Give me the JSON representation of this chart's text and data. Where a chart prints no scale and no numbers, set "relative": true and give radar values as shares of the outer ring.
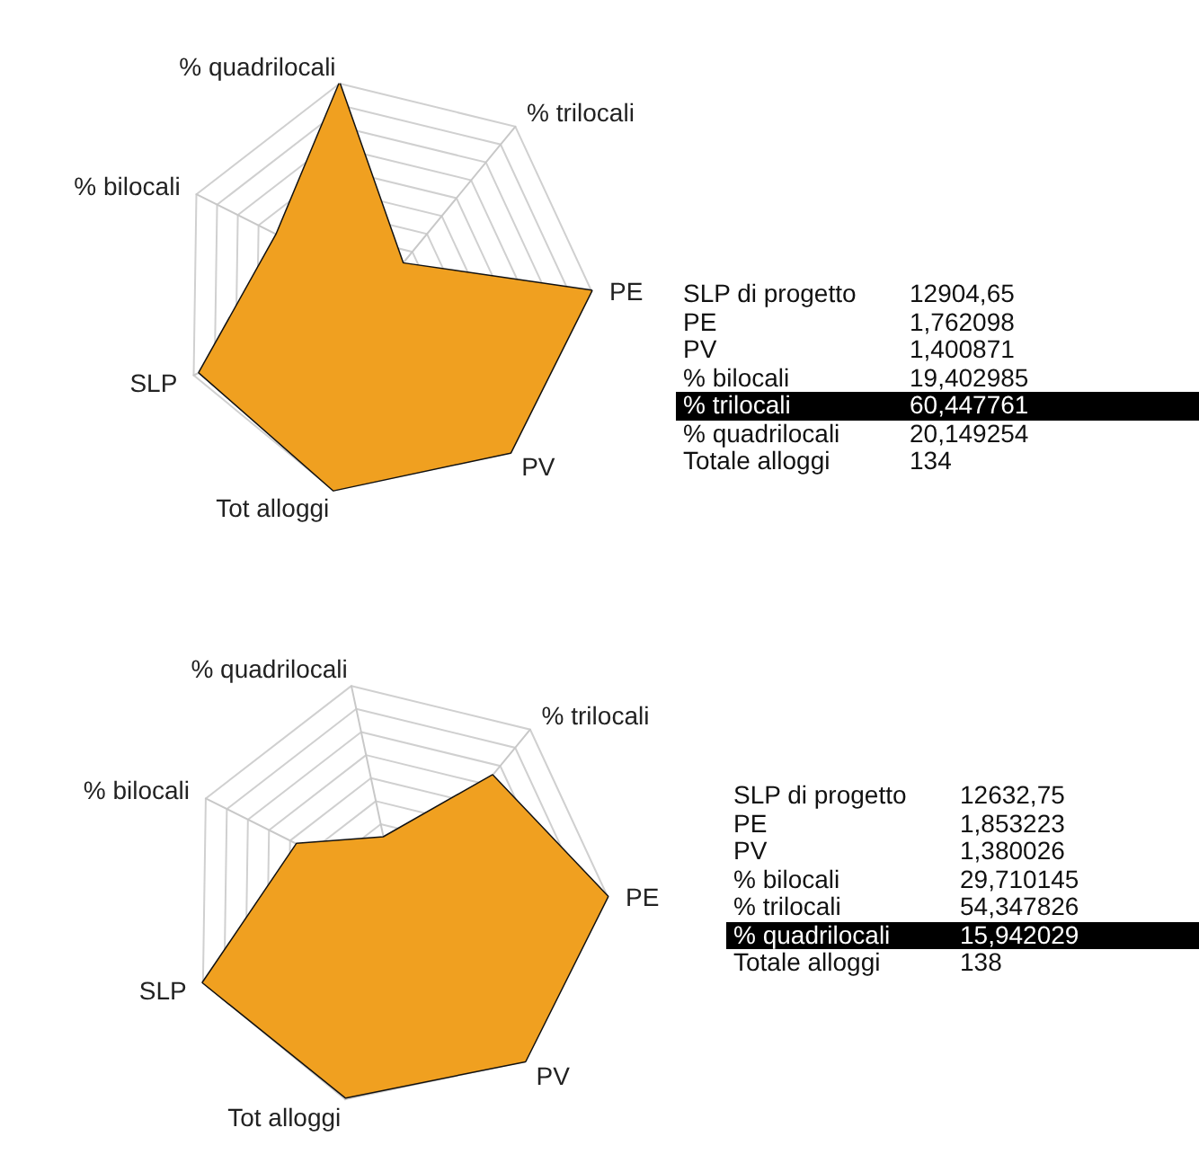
{
  "chart_data": [
    {
      "type": "radar",
      "relative": true,
      "categories": [
        "% quadrilocali",
        "% trilocali",
        "PE",
        "PV",
        "Tot alloggi",
        "SLP",
        "% bilocali"
      ],
      "grid": true,
      "series": [
        {
          "color": "#f0a020",
          "values": [
            1.0,
            0.15,
            1.0,
            1.0,
            1.0,
            0.97,
            0.57
          ]
        }
      ]
    },
    {
      "type": "other",
      "categories": [
        "SLP di progetto",
        "PE",
        "PV",
        "% bilocali",
        "% trilocali",
        "% quadrilocali",
        "Totale alloggi"
      ],
      "value_labels": [
        "12904,65",
        "1,762098",
        "1,400871",
        "19,402985",
        "60,447761",
        "20,149254",
        "134"
      ],
      "colors": [
        null,
        null,
        null,
        null,
        "#000000",
        null,
        null
      ]
    },
    {
      "type": "radar",
      "relative": true,
      "categories": [
        "% quadrilocali",
        "% trilocali",
        "PE",
        "PV",
        "Tot alloggi",
        "SLP",
        "% bilocali"
      ],
      "grid": true,
      "series": [
        {
          "color": "#f0a020",
          "values": [
            0.27,
            0.72,
            1.0,
            1.0,
            0.99,
            1.0,
            0.52
          ]
        }
      ]
    },
    {
      "type": "other",
      "categories": [
        "SLP di progetto",
        "PE",
        "PV",
        "% bilocali",
        "% trilocali",
        "% quadrilocali",
        "Totale alloggi"
      ],
      "value_labels": [
        "12632,75",
        "1,853223",
        "1,380026",
        "29,710145",
        "54,347826",
        "15,942029",
        "138"
      ],
      "colors": [
        null,
        null,
        null,
        null,
        null,
        "#000000",
        null
      ]
    }
  ]
}
